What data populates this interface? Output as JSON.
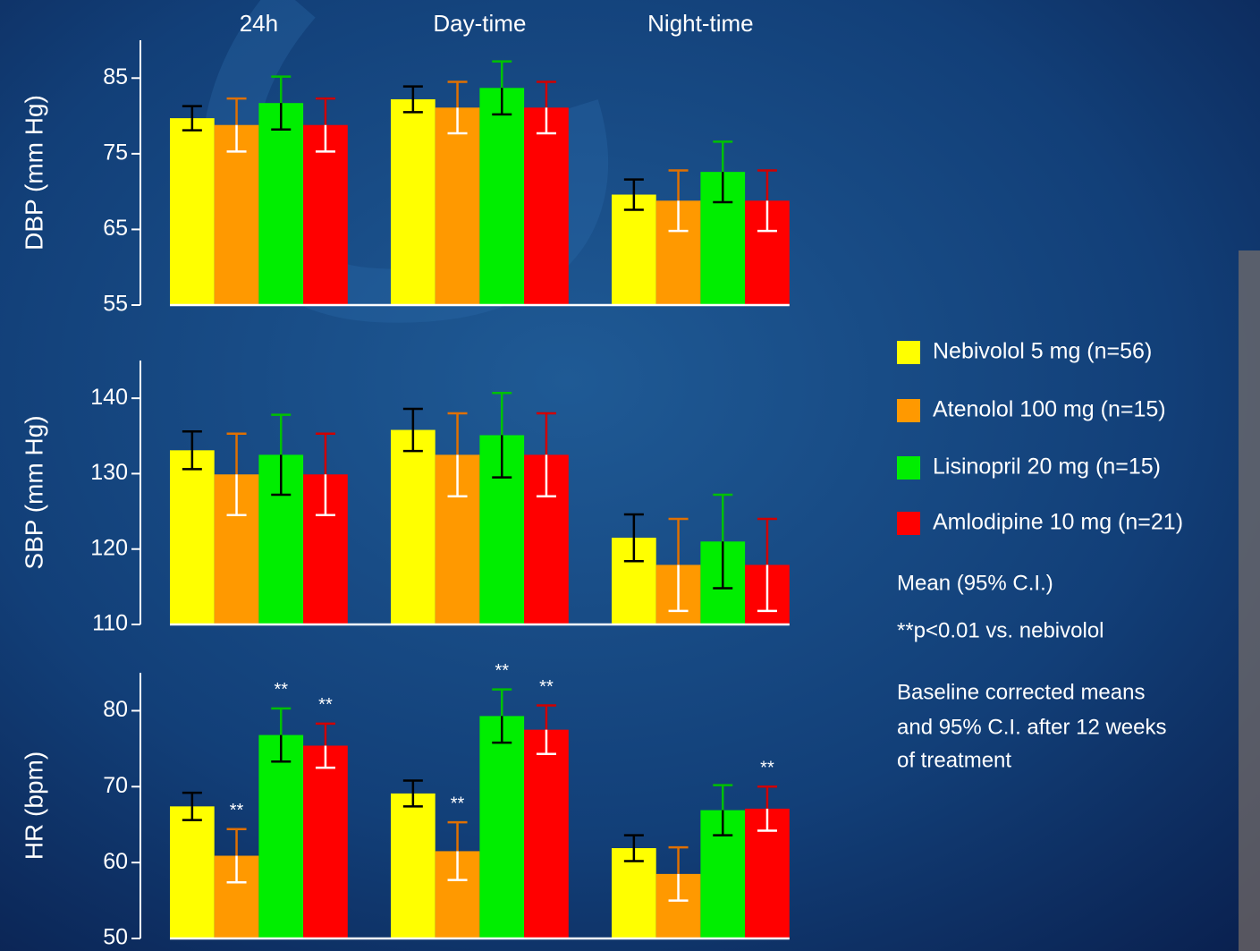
{
  "chart_data": [
    {
      "type": "bar",
      "y_label": "DBP (mm Hg)",
      "categories": [
        "24h",
        "Day-time",
        "Night-time"
      ],
      "ylim": [
        55,
        90
      ],
      "yticks": [
        55,
        65,
        75,
        85
      ],
      "series": [
        {
          "name": "Nebivolol 5 mg (n=56)",
          "color": "#ffff00",
          "error_color": "#000000",
          "values": [
            79.7,
            82.2,
            69.6
          ],
          "errors": [
            1.6,
            1.7,
            2.0
          ]
        },
        {
          "name": "Atenolol 100 mg (n=15)",
          "color": "#ff9900",
          "error_color": "#ffffff",
          "values": [
            78.8,
            81.1,
            68.8
          ],
          "errors": [
            3.5,
            3.4,
            4.0
          ]
        },
        {
          "name": "Lisinopril 20 mg (n=15)",
          "color": "#00ee00",
          "error_color": "#000000",
          "values": [
            81.7,
            83.7,
            72.6
          ],
          "errors": [
            3.5,
            3.5,
            4.0
          ]
        },
        {
          "name": "Amlodipine 10 mg (n=21)",
          "color": "#ff0000",
          "error_color": "#ffffff",
          "values": [
            78.8,
            81.1,
            68.8
          ],
          "errors": [
            3.5,
            3.4,
            4.0
          ]
        }
      ]
    },
    {
      "type": "bar",
      "y_label": "SBP (mm Hg)",
      "categories": [
        null,
        null,
        null
      ],
      "ylim": [
        110,
        145
      ],
      "yticks": [
        110,
        120,
        130,
        140
      ],
      "series": [
        {
          "color": "#ffff00",
          "error_color": "#000000",
          "values": [
            133.1,
            135.8,
            121.5
          ],
          "errors": [
            2.5,
            2.8,
            3.1
          ]
        },
        {
          "color": "#ff9900",
          "error_color": "#ffffff",
          "values": [
            129.9,
            132.5,
            117.9
          ],
          "errors": [
            5.4,
            5.5,
            6.1
          ]
        },
        {
          "color": "#00ee00",
          "error_color": "#000000",
          "values": [
            132.5,
            135.1,
            121.0
          ],
          "errors": [
            5.3,
            5.6,
            6.2
          ]
        },
        {
          "color": "#ff0000",
          "error_color": "#ffffff",
          "values": [
            129.9,
            132.5,
            117.9
          ],
          "errors": [
            5.4,
            5.5,
            6.1
          ]
        }
      ]
    },
    {
      "type": "bar",
      "y_label": "HR (bpm)",
      "categories": [
        null,
        null,
        null
      ],
      "ylim": [
        50,
        85
      ],
      "yticks": [
        50,
        60,
        70,
        80
      ],
      "series": [
        {
          "color": "#ffff00",
          "error_color": "#000000",
          "values": [
            67.4,
            69.1,
            61.9
          ],
          "errors": [
            1.8,
            1.7,
            1.7
          ],
          "annotations": [
            null,
            null,
            null
          ]
        },
        {
          "color": "#ff9900",
          "error_color": "#ffffff",
          "values": [
            60.9,
            61.5,
            58.5
          ],
          "errors": [
            3.5,
            3.8,
            3.5
          ],
          "annotations": [
            "**",
            "**",
            null
          ]
        },
        {
          "color": "#00ee00",
          "error_color": "#000000",
          "values": [
            76.8,
            79.3,
            66.9
          ],
          "errors": [
            3.5,
            3.5,
            3.3
          ],
          "annotations": [
            "**",
            "**",
            null
          ]
        },
        {
          "color": "#ff0000",
          "error_color": "#ffffff",
          "values": [
            75.4,
            77.5,
            67.1
          ],
          "errors": [
            2.9,
            3.2,
            2.9
          ],
          "annotations": [
            "**",
            "**",
            "**"
          ]
        }
      ]
    }
  ],
  "notes": [
    "Mean (95% C.I.)",
    "**p<0.01  vs. nebivolol",
    "Baseline corrected means",
    "and 95% C.I. after 12 weeks",
    "of treatment"
  ]
}
